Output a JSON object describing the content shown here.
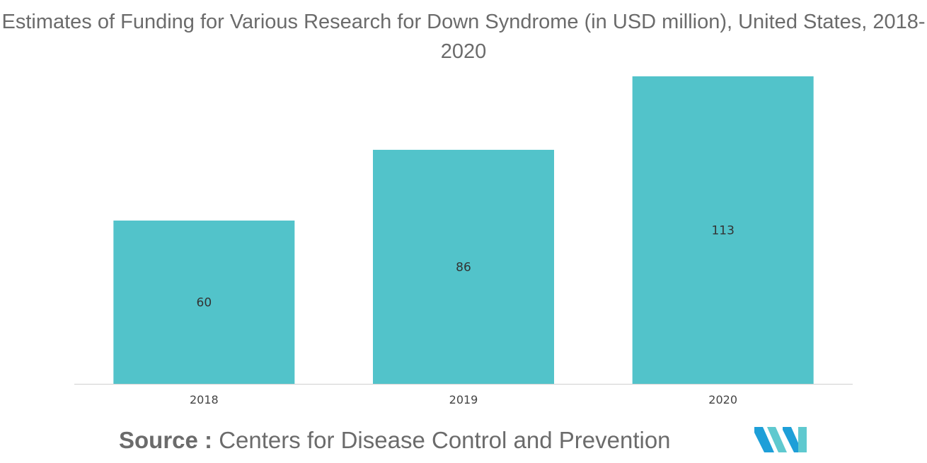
{
  "chart_data": {
    "type": "bar",
    "title": "Estimates of Funding for Various Research for Down Syndrome (in USD million), United States, 2018-2020",
    "categories": [
      "2018",
      "2019",
      "2020"
    ],
    "values": [
      60,
      86,
      113
    ],
    "ylim": [
      0,
      113
    ],
    "grid": false,
    "legend": "none",
    "bar_color": "#52c3ca",
    "axis_color": "#d0d0d0"
  },
  "source": {
    "label": "Source :",
    "text": "Centers for Disease Control and Prevention"
  },
  "logo": {
    "icon": "mordor-intelligence-logo",
    "colors": [
      "#1e9fd8",
      "#5fc9cf"
    ]
  }
}
